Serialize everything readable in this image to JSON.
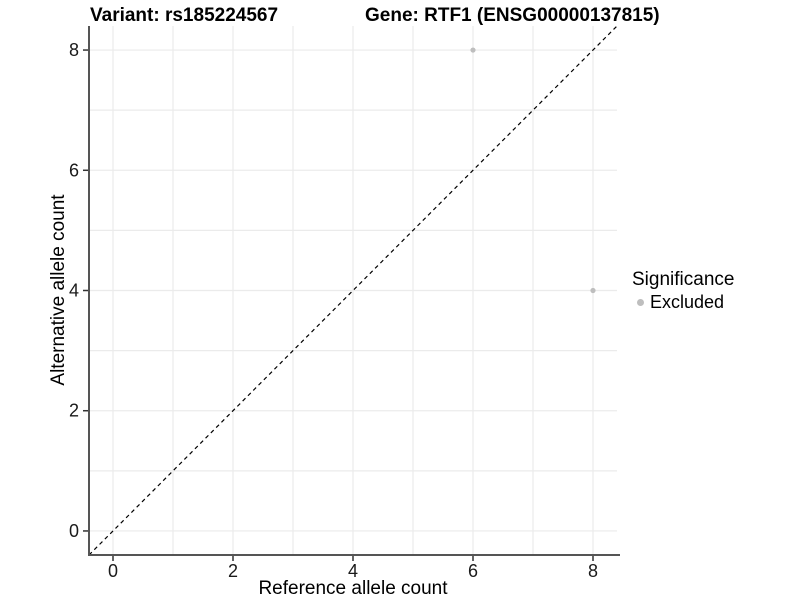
{
  "figure": {
    "title_left": "Variant: rs185224567",
    "title_right": "Gene: RTF1 (ENSG00000137815)",
    "x_label": "Reference allele count",
    "y_label": "Alternative allele count"
  },
  "legend": {
    "title": "Significance",
    "items": [
      {
        "label": "Excluded",
        "color": "#bebebe"
      }
    ]
  },
  "chart_data": {
    "type": "scatter",
    "title": "Variant: rs185224567 — Gene: RTF1 (ENSG00000137815)",
    "xlabel": "Reference allele count",
    "ylabel": "Alternative allele count",
    "xlim": [
      -0.4,
      8.4
    ],
    "ylim": [
      -0.4,
      8.4
    ],
    "x_ticks": [
      0,
      2,
      4,
      6,
      8
    ],
    "y_ticks": [
      0,
      2,
      4,
      6,
      8
    ],
    "grid": true,
    "grid_interval": 1,
    "legend_position": "right",
    "series": [
      {
        "name": "Excluded",
        "color": "#bebebe",
        "points": [
          {
            "x": 6,
            "y": 8
          },
          {
            "x": 8,
            "y": 4
          }
        ]
      }
    ],
    "reference_line": {
      "slope": 1,
      "intercept": 0,
      "style": "dashed",
      "color": "#000000"
    },
    "colors": {
      "background": "#ffffff",
      "gridline": "#ebebeb",
      "axis_line": "#555555",
      "tick_mark": "#333333",
      "tick_label": "#1a1a1a",
      "point": "#bebebe"
    }
  }
}
